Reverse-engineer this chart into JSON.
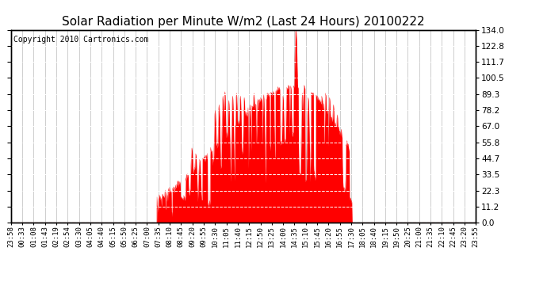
{
  "title": "Solar Radiation per Minute W/m2 (Last 24 Hours) 20100222",
  "copyright": "Copyright 2010 Cartronics.com",
  "yticks": [
    0.0,
    11.2,
    22.3,
    33.5,
    44.7,
    55.8,
    67.0,
    78.2,
    89.3,
    100.5,
    111.7,
    122.8,
    134.0
  ],
  "ymax": 134.0,
  "ymin": 0.0,
  "fill_color": "#ff0000",
  "bg_color": "#ffffff",
  "baseline_color": "#ff0000",
  "title_fontsize": 11,
  "copyright_fontsize": 7,
  "xtick_fontsize": 6.5,
  "ytick_fontsize": 7.5,
  "xtick_labels": [
    "23:58",
    "00:33",
    "01:08",
    "01:43",
    "02:19",
    "02:54",
    "03:30",
    "04:05",
    "04:40",
    "05:15",
    "05:50",
    "06:25",
    "07:00",
    "07:35",
    "08:10",
    "08:45",
    "09:20",
    "09:55",
    "10:30",
    "11:05",
    "11:40",
    "12:15",
    "12:50",
    "13:25",
    "14:00",
    "14:35",
    "15:10",
    "15:45",
    "16:20",
    "16:55",
    "17:30",
    "18:05",
    "18:40",
    "19:15",
    "19:50",
    "20:25",
    "21:00",
    "21:35",
    "22:10",
    "22:45",
    "23:20",
    "23:55"
  ],
  "sunrise_hour": 7.5,
  "sunset_hour": 17.55,
  "peak_hour": 14.65,
  "peak_value": 134.0,
  "n_points": 1440
}
